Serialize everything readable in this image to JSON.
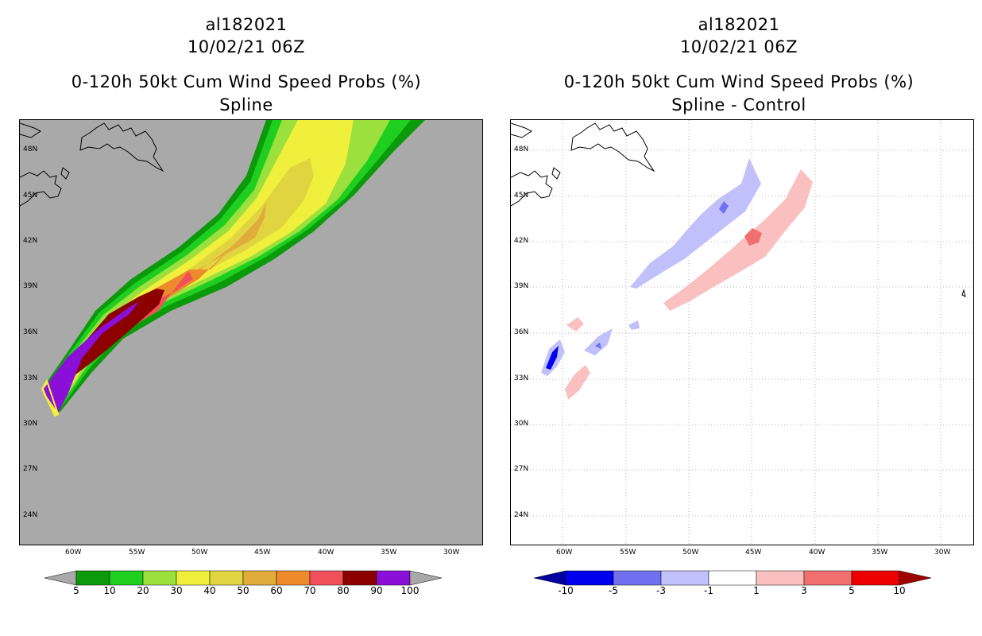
{
  "panel_left": {
    "title_line1": "al182021",
    "title_line2": "10/02/21 06Z",
    "title_line3": "0-120h 50kt Cum Wind Speed Probs (%)",
    "title_line4": "Spline",
    "colorbar_labels": [
      "5",
      "10",
      "20",
      "30",
      "40",
      "50",
      "60",
      "70",
      "80",
      "90",
      "100"
    ],
    "colorbar_colors": [
      "#0a9a0a",
      "#1fcf1f",
      "#9be03c",
      "#f0f03c",
      "#e0d440",
      "#e0ac3c",
      "#ec8a2c",
      "#f0505a",
      "#8c0000",
      "#8a10d8"
    ]
  },
  "panel_right": {
    "title_line1": "al182021",
    "title_line2": "10/02/21 06Z",
    "title_line3": "0-120h 50kt Cum Wind Speed Probs (%)",
    "title_line4": "Spline - Control",
    "colorbar_labels": [
      "-10",
      "-5",
      "-3",
      "-1",
      "1",
      "3",
      "5",
      "10"
    ],
    "colorbar_colors": [
      "#0000a0",
      "#0000ee",
      "#7070f0",
      "#c0c0fa",
      "#ffffff",
      "#fac0c0",
      "#f07070",
      "#ee0000",
      "#a00000"
    ]
  },
  "axes": {
    "lat_labels": [
      "48N",
      "45N",
      "42N",
      "39N",
      "36N",
      "33N",
      "30N",
      "27N",
      "24N"
    ],
    "lon_labels": [
      "60W",
      "55W",
      "50W",
      "45W",
      "40W",
      "35W",
      "30W"
    ]
  },
  "colors": {
    "background": "#a9a9a9",
    "grid": "#b0b0b0"
  }
}
